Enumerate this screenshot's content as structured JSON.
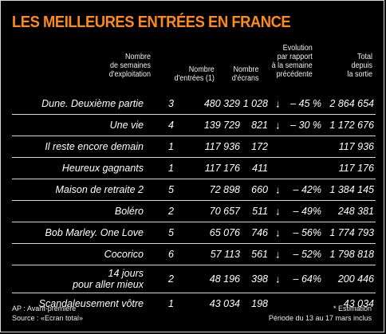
{
  "title": "LES MEILLEURES ENTRÉES EN FRANCE",
  "headers": {
    "weeks": [
      "Nombre",
      "de semaines",
      "d'exploitation"
    ],
    "entries": [
      "Nombre",
      "d'entrées (1)"
    ],
    "screens": [
      "Nombre",
      "d'écrans"
    ],
    "evolution": [
      "Evolution",
      "par rapport",
      "à la semaine",
      "précédente"
    ],
    "total": [
      "Total",
      "depuis",
      "la sortie"
    ]
  },
  "arrow_icon": "↓",
  "rows": [
    {
      "film": [
        "Dune. Deuxième partie"
      ],
      "weeks": "3",
      "entries": "480 329",
      "screens": "1 028",
      "arrow": "↓",
      "evolution": "– 45 %",
      "total": "2 864 654"
    },
    {
      "film": [
        "Une vie"
      ],
      "weeks": "4",
      "entries": "139 729",
      "screens": "821",
      "arrow": "↓",
      "evolution": "– 30 %",
      "total": "1 172 676"
    },
    {
      "film": [
        "Il reste encore demain"
      ],
      "weeks": "1",
      "entries": "117 936",
      "screens": "172",
      "arrow": "",
      "evolution": "",
      "total": "117 936"
    },
    {
      "film": [
        "Heureux gagnants"
      ],
      "weeks": "1",
      "entries": "117 176",
      "screens": "411",
      "arrow": "",
      "evolution": "",
      "total": "117 176"
    },
    {
      "film": [
        "Maison de retraite 2"
      ],
      "weeks": "5",
      "entries": "72 898",
      "screens": "660",
      "arrow": "↓",
      "evolution": "– 42%",
      "total": "1 384 145"
    },
    {
      "film": [
        "Boléro"
      ],
      "weeks": "2",
      "entries": "70 657",
      "screens": "511",
      "arrow": "↓",
      "evolution": "– 49%",
      "total": "248 381"
    },
    {
      "film": [
        "Bob Marley. One Love"
      ],
      "weeks": "5",
      "entries": "65 076",
      "screens": "746",
      "arrow": "↓",
      "evolution": "– 56%",
      "total": "1 774 793"
    },
    {
      "film": [
        "Cocorico"
      ],
      "weeks": "6",
      "entries": "57 113",
      "screens": "561",
      "arrow": "↓",
      "evolution": "– 52%",
      "total": "1 798 818"
    },
    {
      "film": [
        "14 jours",
        "pour aller mieux"
      ],
      "weeks": "2",
      "entries": "48 196",
      "screens": "398",
      "arrow": "↓",
      "evolution": "– 64%",
      "total": "200 446"
    },
    {
      "film": [
        "Scandaleusement vôtre"
      ],
      "weeks": "1",
      "entries": "43 034",
      "screens": "198",
      "arrow": "",
      "evolution": "",
      "total": "43 034"
    }
  ],
  "footer": {
    "left": [
      "AP : Avant-première",
      "Source : «Ecran total»"
    ],
    "right": [
      "* Estimation",
      "Période du 13 au 17 mars inclus"
    ]
  },
  "colors": {
    "accent": "#ff8a1c",
    "background": "#000000",
    "text": "#ffffff",
    "rule": "#d8d8d8"
  }
}
